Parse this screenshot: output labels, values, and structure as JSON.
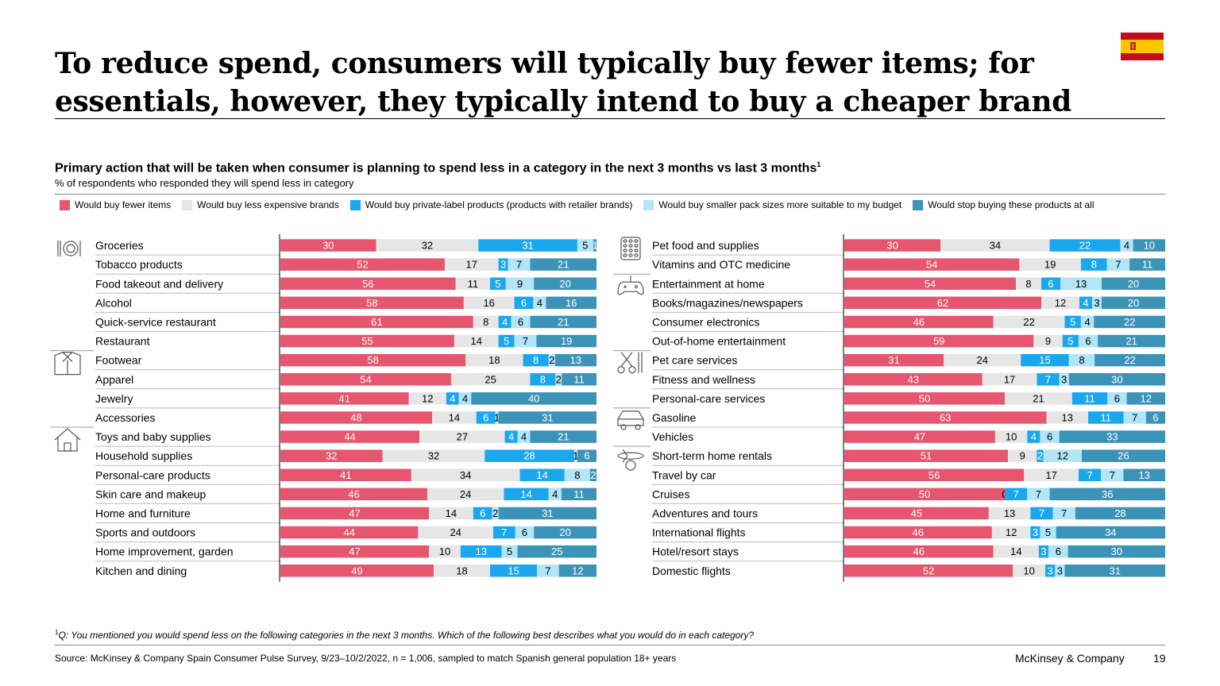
{
  "header": {
    "title": "To reduce spend, consumers will typically buy fewer items; for essentials, however, they typically intend to buy a cheaper brand",
    "flag_icon": "spain-flag-icon"
  },
  "chart_data": {
    "type": "bar",
    "orientation": "horizontal-stacked-100",
    "title": "Primary action that will be taken when consumer is planning to spend less in a category in the next 3 months vs last 3 months",
    "title_footnote": "1",
    "subtitle": "% of respondents who responded they will spend less in category",
    "legend": [
      "Would buy fewer items",
      "Would buy less expensive brands",
      "Would buy private-label products (products with retailer brands)",
      "Would buy smaller pack sizes more suitable to my budget",
      "Would stop buying these products at all"
    ],
    "colors": [
      "#e6566f",
      "#e6e6e6",
      "#1ba7ee",
      "#b2e5f8",
      "#3c93b8"
    ],
    "label_colors": [
      "#ffffff",
      "#000000",
      "#ffffff",
      "#000000",
      "#ffffff"
    ],
    "panels": [
      {
        "groups": [
          {
            "icon": "dining-icon",
            "rows": [
              {
                "category": "Groceries",
                "values": [
                  30,
                  32,
                  31,
                  5,
                  1
                ]
              },
              {
                "category": "Tobacco products",
                "values": [
                  52,
                  17,
                  3,
                  7,
                  21
                ]
              },
              {
                "category": "Food takeout and delivery",
                "values": [
                  56,
                  11,
                  5,
                  9,
                  20
                ]
              },
              {
                "category": "Alcohol",
                "values": [
                  58,
                  16,
                  6,
                  4,
                  16
                ]
              },
              {
                "category": "Quick-service restaurant",
                "values": [
                  61,
                  8,
                  4,
                  6,
                  21
                ]
              },
              {
                "category": "Restaurant",
                "values": [
                  55,
                  14,
                  5,
                  7,
                  19
                ]
              }
            ]
          },
          {
            "icon": "shirt-icon",
            "rows": [
              {
                "category": "Footwear",
                "values": [
                  58,
                  18,
                  8,
                  2,
                  13
                ]
              },
              {
                "category": "Apparel",
                "values": [
                  54,
                  25,
                  8,
                  2,
                  11
                ]
              },
              {
                "category": "Jewelry",
                "values": [
                  41,
                  12,
                  4,
                  4,
                  40
                ]
              },
              {
                "category": "Accessories",
                "values": [
                  48,
                  14,
                  6,
                  1,
                  31
                ]
              }
            ]
          },
          {
            "icon": "house-icon",
            "rows": [
              {
                "category": "Toys and baby supplies",
                "values": [
                  44,
                  27,
                  4,
                  4,
                  21
                ]
              },
              {
                "category": "Household supplies",
                "values": [
                  32,
                  32,
                  28,
                  1,
                  6
                ]
              },
              {
                "category": "Personal-care products",
                "values": [
                  41,
                  34,
                  14,
                  8,
                  2
                ]
              },
              {
                "category": "Skin care and makeup",
                "values": [
                  46,
                  24,
                  14,
                  4,
                  11
                ]
              },
              {
                "category": "Home and furniture",
                "values": [
                  47,
                  14,
                  6,
                  2,
                  31
                ]
              },
              {
                "category": "Sports and outdoors",
                "values": [
                  44,
                  24,
                  7,
                  6,
                  20
                ]
              },
              {
                "category": "Home improvement, garden",
                "values": [
                  47,
                  10,
                  13,
                  5,
                  25
                ]
              },
              {
                "category": "Kitchen and dining",
                "values": [
                  49,
                  18,
                  15,
                  7,
                  12
                ]
              }
            ]
          }
        ]
      },
      {
        "groups": [
          {
            "icon": "pills-icon",
            "rows": [
              {
                "category": "Pet food and supplies",
                "values": [
                  30,
                  34,
                  22,
                  4,
                  10
                ]
              },
              {
                "category": "Vitamins and OTC medicine",
                "values": [
                  54,
                  19,
                  8,
                  7,
                  11
                ]
              }
            ]
          },
          {
            "icon": "gamepad-icon",
            "rows": [
              {
                "category": "Entertainment at home",
                "values": [
                  54,
                  8,
                  6,
                  13,
                  20
                ]
              },
              {
                "category": "Books/magazines/newspapers",
                "values": [
                  62,
                  12,
                  4,
                  3,
                  20
                ]
              },
              {
                "category": "Consumer electronics",
                "values": [
                  46,
                  22,
                  5,
                  4,
                  22
                ]
              },
              {
                "category": "Out-of-home entertainment",
                "values": [
                  59,
                  9,
                  5,
                  6,
                  21
                ]
              }
            ]
          },
          {
            "icon": "scissors-icon",
            "rows": [
              {
                "category": "Pet care services",
                "values": [
                  31,
                  24,
                  15,
                  8,
                  22
                ]
              },
              {
                "category": "Fitness and wellness",
                "values": [
                  43,
                  17,
                  7,
                  3,
                  30
                ]
              },
              {
                "category": "Personal-care services",
                "values": [
                  50,
                  21,
                  11,
                  6,
                  12
                ]
              }
            ]
          },
          {
            "icon": "car-icon",
            "rows": [
              {
                "category": "Gasoline",
                "values": [
                  63,
                  13,
                  11,
                  7,
                  6
                ]
              },
              {
                "category": "Vehicles",
                "values": [
                  47,
                  10,
                  4,
                  6,
                  33
                ]
              }
            ]
          },
          {
            "icon": "airplane-icon",
            "rows": [
              {
                "category": "Short-term home rentals",
                "values": [
                  51,
                  9,
                  2,
                  12,
                  26
                ]
              },
              {
                "category": "Travel by car",
                "values": [
                  56,
                  17,
                  7,
                  7,
                  13
                ]
              },
              {
                "category": "Cruises",
                "values": [
                  50,
                  0,
                  7,
                  7,
                  36
                ]
              },
              {
                "category": "Adventures and tours",
                "values": [
                  45,
                  13,
                  7,
                  7,
                  28
                ]
              },
              {
                "category": "International flights",
                "values": [
                  46,
                  12,
                  3,
                  5,
                  34
                ]
              },
              {
                "category": "Hotel/resort stays",
                "values": [
                  46,
                  14,
                  3,
                  6,
                  30
                ]
              },
              {
                "category": "Domestic flights",
                "values": [
                  52,
                  10,
                  3,
                  3,
                  31
                ]
              }
            ]
          }
        ]
      }
    ]
  },
  "footnote": {
    "marker": "1",
    "text": "Q: You mentioned you would spend less on the following categories in the next 3 months. Which of the following best describes what you would do in each category?"
  },
  "footer": {
    "source": "Source: McKinsey & Company Spain Consumer Pulse Survey, 9/23–10/2/2022, n = 1,006, sampled to match Spanish general population 18+ years",
    "brand": "McKinsey & Company",
    "page_number": "19"
  }
}
